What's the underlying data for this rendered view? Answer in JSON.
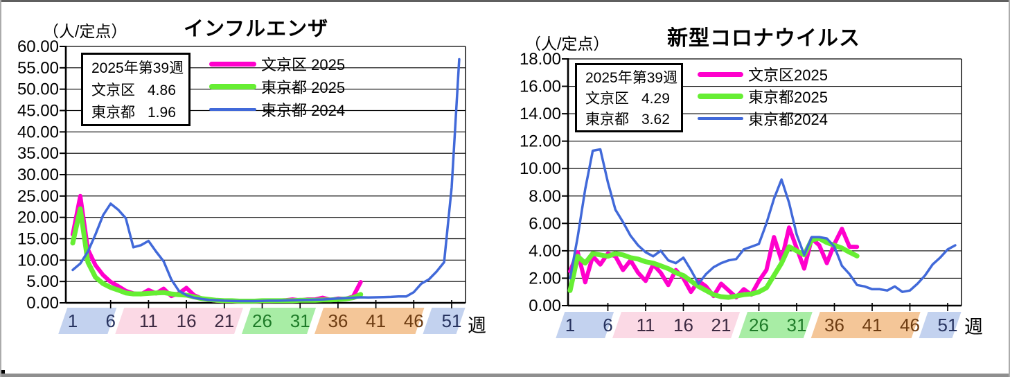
{
  "window": {
    "background": "#ffffff",
    "frame_top_color": "#5f5f5f",
    "frame_side_color": "#ababab",
    "frame_bottom_color": "#8f8f8f"
  },
  "charts": [
    {
      "title": "インフルエンザ",
      "unit_label": "（人/定点）",
      "x_unit_label": "週",
      "info_box": {
        "week_line": "2025年第39週",
        "rows": [
          {
            "name": "文京区",
            "value": "4.86"
          },
          {
            "name": "東京都",
            "value": "1.96"
          }
        ]
      },
      "legend": [
        {
          "label": "文京区 2025",
          "color": "#ff00cc",
          "line_thickness": 7
        },
        {
          "label": "東京都 2025",
          "color": "#66ee33",
          "line_thickness": 8
        },
        {
          "label": "東京都 2024",
          "color": "#4169d9",
          "line_thickness": 4
        }
      ],
      "chart_data": {
        "type": "line",
        "title": "インフルエンザ",
        "ylabel": "人/定点",
        "xlabel": "週",
        "ylim": [
          0,
          60
        ],
        "y_tick_step": 5,
        "x_range_weeks": [
          1,
          52
        ],
        "grid": true,
        "x_ticks": [
          {
            "week": 1,
            "label": "1",
            "color": "#27335f"
          },
          {
            "week": 6,
            "label": "6",
            "color": "#27335f"
          },
          {
            "week": 11,
            "label": "11",
            "color": "#3d2a42"
          },
          {
            "week": 16,
            "label": "16",
            "color": "#3d2a42"
          },
          {
            "week": 21,
            "label": "21",
            "color": "#3d2a42"
          },
          {
            "week": 26,
            "label": "26",
            "color": "#1e7b28"
          },
          {
            "week": 31,
            "label": "31",
            "color": "#1e7b28"
          },
          {
            "week": 36,
            "label": "36",
            "color": "#6d3c12"
          },
          {
            "week": 41,
            "label": "41",
            "color": "#6d3c12"
          },
          {
            "week": 46,
            "label": "46",
            "color": "#6d3c12"
          },
          {
            "week": 51,
            "label": "51",
            "color": "#27335f"
          }
        ],
        "season_bands": [
          {
            "start_week": -0.9,
            "end_week": 5.6,
            "color": "#c3d2ef"
          },
          {
            "start_week": 6.6,
            "end_week": 22.3,
            "color": "#fbd9e5"
          },
          {
            "start_week": 23.3,
            "end_week": 31.9,
            "color": "#a8eda5"
          },
          {
            "start_week": 32.9,
            "end_week": 46.2,
            "color": "#f4c698"
          },
          {
            "start_week": 47.2,
            "end_week": 51.6,
            "color": "#c3d2ef"
          }
        ],
        "series": [
          {
            "name": "文京区 2025",
            "color": "#ff00cc",
            "width": 6,
            "start_week": 1,
            "values": [
              16.0,
              25.0,
              12.5,
              8.8,
              6.5,
              4.9,
              3.9,
              2.8,
              2.2,
              2.0,
              3.0,
              2.2,
              3.3,
              1.6,
              2.2,
              3.5,
              1.8,
              1.0,
              0.7,
              0.5,
              0.4,
              0.4,
              0.3,
              0.4,
              0.3,
              0.4,
              0.4,
              0.5,
              0.6,
              0.8,
              0.6,
              0.8,
              0.8,
              1.2,
              0.7,
              1.0,
              0.9,
              1.5,
              4.86
            ]
          },
          {
            "name": "東京都 2025",
            "color": "#66ee33",
            "width": 7,
            "start_week": 1,
            "values": [
              14.0,
              22.0,
              9.5,
              6.0,
              4.5,
              3.6,
              3.0,
              2.3,
              2.1,
              2.1,
              2.2,
              2.3,
              2.4,
              2.1,
              1.9,
              1.8,
              1.4,
              1.0,
              0.8,
              0.6,
              0.5,
              0.5,
              0.4,
              0.4,
              0.4,
              0.5,
              0.5,
              0.5,
              0.5,
              0.5,
              0.6,
              0.6,
              0.6,
              0.7,
              0.7,
              0.8,
              0.9,
              1.2,
              1.96
            ]
          },
          {
            "name": "東京都 2024",
            "color": "#4169d9",
            "width": 3.5,
            "start_week": 1,
            "values": [
              7.7,
              9.2,
              12.0,
              16.0,
              20.5,
              23.2,
              21.8,
              19.8,
              13.0,
              13.5,
              14.5,
              12.0,
              9.7,
              5.5,
              2.8,
              1.8,
              1.2,
              0.9,
              0.7,
              0.6,
              0.5,
              0.45,
              0.4,
              0.4,
              0.4,
              0.45,
              0.5,
              0.5,
              0.55,
              0.6,
              0.65,
              0.7,
              0.75,
              0.8,
              0.9,
              1.0,
              1.1,
              1.2,
              1.3,
              1.25,
              1.3,
              1.35,
              1.4,
              1.5,
              1.5,
              2.5,
              4.5,
              5.5,
              7.3,
              9.5,
              27.0,
              57.0
            ]
          }
        ]
      }
    },
    {
      "title": "新型コロナウイルス",
      "unit_label": "（人/定点）",
      "x_unit_label": "週",
      "info_box": {
        "week_line": "2025年第39週",
        "rows": [
          {
            "name": "文京区",
            "value": "4.29"
          },
          {
            "name": "東京都",
            "value": "3.62"
          }
        ]
      },
      "legend": [
        {
          "label": "文京区2025",
          "color": "#ff00cc",
          "line_thickness": 7
        },
        {
          "label": "東京都2025",
          "color": "#66ee33",
          "line_thickness": 8
        },
        {
          "label": "東京都2024",
          "color": "#4169d9",
          "line_thickness": 4
        }
      ],
      "chart_data": {
        "type": "line",
        "title": "新型コロナウイルス",
        "ylabel": "人/定点",
        "xlabel": "週",
        "ylim": [
          0,
          18
        ],
        "y_tick_step": 2,
        "x_range_weeks": [
          1,
          52
        ],
        "grid": true,
        "x_ticks": [
          {
            "week": 1,
            "label": "1",
            "color": "#27335f"
          },
          {
            "week": 6,
            "label": "6",
            "color": "#27335f"
          },
          {
            "week": 11,
            "label": "11",
            "color": "#3d2a42"
          },
          {
            "week": 16,
            "label": "16",
            "color": "#3d2a42"
          },
          {
            "week": 21,
            "label": "21",
            "color": "#3d2a42"
          },
          {
            "week": 26,
            "label": "26",
            "color": "#1e7b28"
          },
          {
            "week": 31,
            "label": "31",
            "color": "#1e7b28"
          },
          {
            "week": 36,
            "label": "36",
            "color": "#6d3c12"
          },
          {
            "week": 41,
            "label": "41",
            "color": "#6d3c12"
          },
          {
            "week": 46,
            "label": "46",
            "color": "#6d3c12"
          },
          {
            "week": 51,
            "label": "51",
            "color": "#27335f"
          }
        ],
        "season_bands": [
          {
            "start_week": -0.9,
            "end_week": 5.6,
            "color": "#c3d2ef"
          },
          {
            "start_week": 6.6,
            "end_week": 22.3,
            "color": "#fbd9e5"
          },
          {
            "start_week": 23.3,
            "end_week": 31.9,
            "color": "#a8eda5"
          },
          {
            "start_week": 32.9,
            "end_week": 46.2,
            "color": "#f4c698"
          },
          {
            "start_week": 47.2,
            "end_week": 51.6,
            "color": "#c3d2ef"
          }
        ],
        "series": [
          {
            "name": "文京区2025",
            "color": "#ff00cc",
            "width": 6,
            "start_week": 1,
            "values": [
              2.5,
              3.9,
              1.7,
              3.6,
              3.0,
              3.8,
              3.6,
              2.6,
              3.3,
              2.4,
              1.8,
              3.0,
              2.4,
              1.5,
              2.6,
              2.0,
              1.0,
              1.8,
              1.4,
              0.7,
              1.6,
              1.1,
              0.6,
              1.2,
              0.8,
              1.8,
              2.6,
              5.0,
              3.3,
              5.7,
              4.2,
              2.7,
              4.9,
              4.4,
              3.1,
              4.5,
              5.6,
              4.3,
              4.29
            ]
          },
          {
            "name": "東京都2025",
            "color": "#66ee33",
            "width": 7,
            "start_week": 1,
            "values": [
              1.1,
              3.6,
              3.1,
              3.8,
              3.7,
              3.6,
              3.8,
              3.7,
              3.5,
              3.4,
              3.2,
              3.1,
              2.9,
              2.7,
              2.4,
              2.2,
              1.8,
              1.4,
              1.1,
              0.8,
              0.65,
              0.6,
              0.7,
              0.8,
              0.85,
              1.0,
              1.3,
              2.2,
              3.1,
              4.3,
              4.0,
              3.7,
              4.8,
              4.9,
              4.6,
              4.4,
              4.2,
              3.9,
              3.62
            ]
          },
          {
            "name": "東京都2024",
            "color": "#4169d9",
            "width": 3.5,
            "start_week": 1,
            "values": [
              2.0,
              5.0,
              8.5,
              11.3,
              11.4,
              9.0,
              7.0,
              6.1,
              5.1,
              4.4,
              3.9,
              3.6,
              4.0,
              3.3,
              3.1,
              3.5,
              2.6,
              1.6,
              2.3,
              2.8,
              3.1,
              3.3,
              3.4,
              4.1,
              4.3,
              4.5,
              6.0,
              7.8,
              9.2,
              7.5,
              5.2,
              3.7,
              5.0,
              5.0,
              4.9,
              4.3,
              2.9,
              2.3,
              1.5,
              1.4,
              1.2,
              1.2,
              1.1,
              1.4,
              1.0,
              1.1,
              1.6,
              2.2,
              3.0,
              3.5,
              4.1,
              4.4
            ]
          }
        ]
      }
    }
  ]
}
